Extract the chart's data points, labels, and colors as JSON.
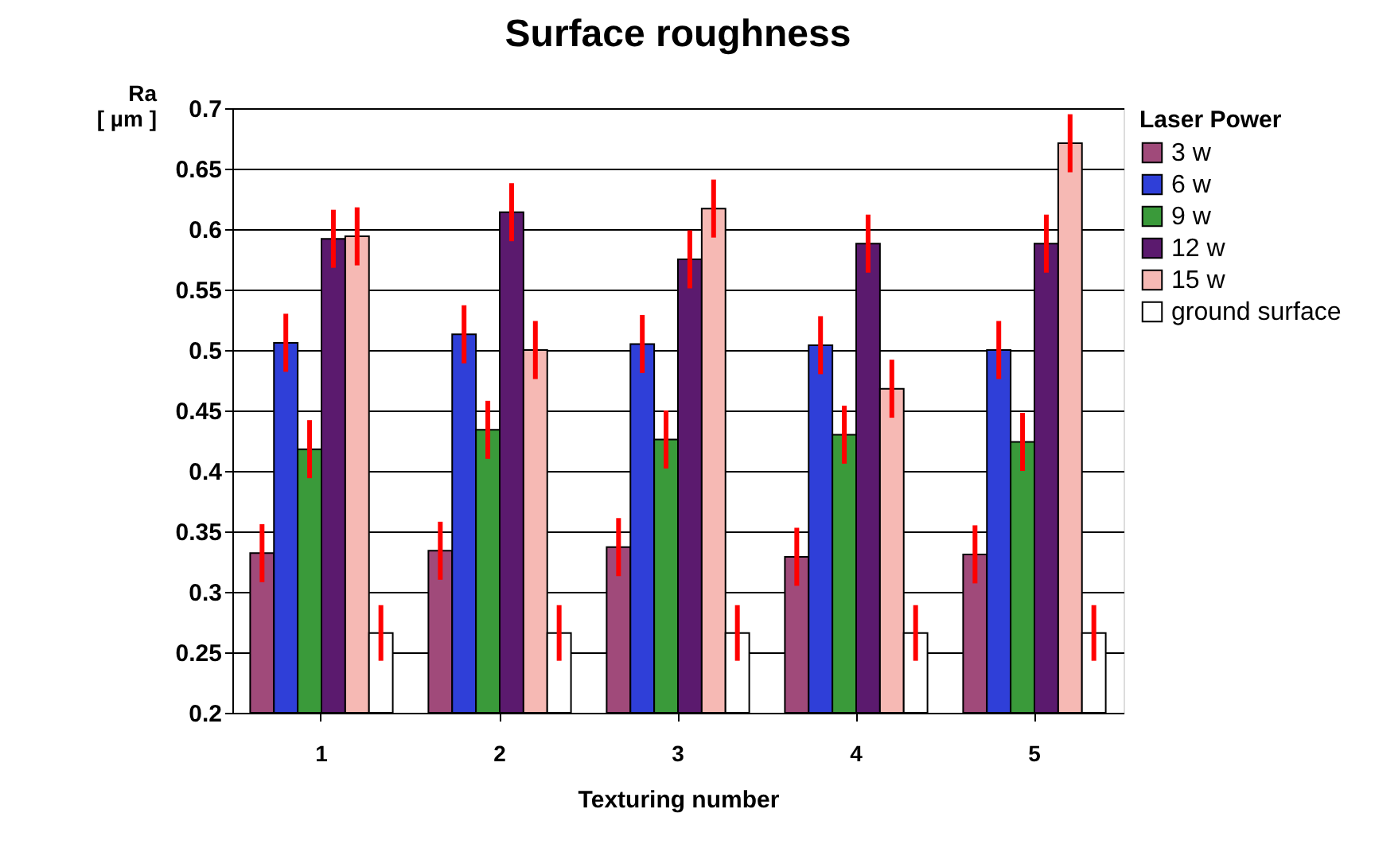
{
  "chart_data": {
    "type": "bar",
    "title": "Surface roughness",
    "xlabel": "Texturing number",
    "ylabel": "Ra\n[ µm ]",
    "legend_title": "Laser Power",
    "categories": [
      "1",
      "2",
      "3",
      "4",
      "5"
    ],
    "series": [
      {
        "name": "3 w",
        "color": "#a04a7a",
        "values": [
          0.332,
          0.334,
          0.337,
          0.329,
          0.331
        ],
        "errors": [
          0.024,
          0.024,
          0.024,
          0.024,
          0.024
        ]
      },
      {
        "name": "6 w",
        "color": "#2f3fd8",
        "values": [
          0.506,
          0.513,
          0.505,
          0.504,
          0.5
        ],
        "errors": [
          0.024,
          0.024,
          0.024,
          0.024,
          0.024
        ]
      },
      {
        "name": "9 w",
        "color": "#3a9a3a",
        "values": [
          0.418,
          0.434,
          0.426,
          0.43,
          0.424
        ],
        "errors": [
          0.024,
          0.024,
          0.024,
          0.024,
          0.024
        ]
      },
      {
        "name": "12 w",
        "color": "#5b1a6e",
        "values": [
          0.592,
          0.614,
          0.575,
          0.588,
          0.588
        ],
        "errors": [
          0.024,
          0.024,
          0.024,
          0.024,
          0.024
        ]
      },
      {
        "name": "15 w",
        "color": "#f6b9b4",
        "values": [
          0.594,
          0.5,
          0.617,
          0.468,
          0.671
        ],
        "errors": [
          0.024,
          0.024,
          0.024,
          0.024,
          0.024
        ]
      },
      {
        "name": "ground surface",
        "color": "#ffffff",
        "values": [
          0.266,
          0.266,
          0.266,
          0.266,
          0.266
        ],
        "errors": [
          0.023,
          0.023,
          0.023,
          0.023,
          0.023
        ]
      }
    ],
    "ylim": [
      0.2,
      0.7
    ],
    "yticks": [
      0.2,
      0.25,
      0.3,
      0.35,
      0.4,
      0.45,
      0.5,
      0.55,
      0.6,
      0.65,
      0.7
    ],
    "grid": "y",
    "legend": "right"
  }
}
